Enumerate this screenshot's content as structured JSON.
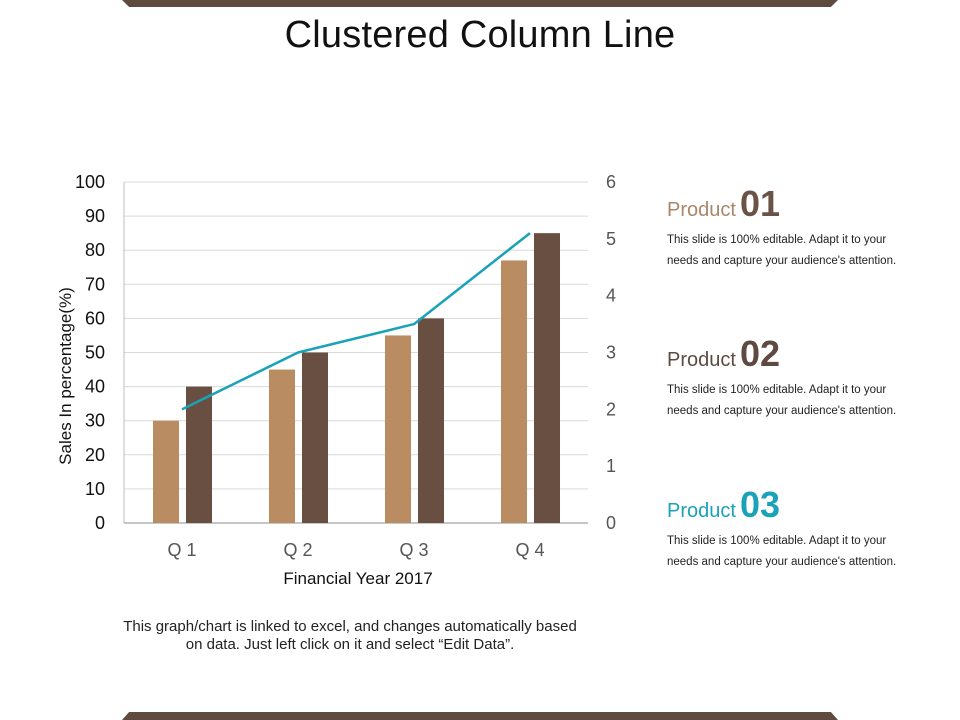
{
  "page": {
    "title": "Clustered Column Line",
    "caption": "This graph/chart is linked to excel, and changes automatically based on data. Just left click on it and select “Edit Data”.",
    "accent_color": "#5e4a40"
  },
  "chart_data": {
    "type": "bar",
    "combo": "clustered column + line",
    "categories": [
      "Q 1",
      "Q 2",
      "Q 3",
      "Q 4"
    ],
    "series": [
      {
        "values": [
          30,
          45,
          55,
          77
        ],
        "color": "#b98c62",
        "axis": "left"
      },
      {
        "values": [
          40,
          50,
          60,
          85
        ],
        "color": "#694f42",
        "axis": "left"
      }
    ],
    "line_series": {
      "values": [
        2.0,
        3.0,
        3.5,
        5.1
      ],
      "color": "#1aa2b8",
      "axis": "right",
      "type": "line"
    },
    "xlabel": "Financial Year 2017",
    "ylabel": "Sales In percentage(%)",
    "ylim": [
      0,
      100
    ],
    "yticks": [
      "0",
      "10",
      "20",
      "30",
      "40",
      "50",
      "60",
      "70",
      "80",
      "90",
      "100"
    ],
    "y2lim": [
      0,
      6
    ],
    "y2ticks": [
      "0",
      "1",
      "2",
      "3",
      "4",
      "5",
      "6"
    ],
    "grid": true,
    "legend": "none"
  },
  "products": [
    {
      "label": "Product",
      "number": "01",
      "label_color": "#a8876a",
      "number_color": "#6b5247",
      "desc_line1": "This slide is 100% editable. Adapt it to your",
      "desc_line2": "needs and capture your audience's attention."
    },
    {
      "label": "Product",
      "number": "02",
      "label_color": "#5e4a40",
      "number_color": "#5e4a40",
      "desc_line1": "This slide is 100% editable. Adapt it to your",
      "desc_line2": "needs and capture your audience's attention."
    },
    {
      "label": "Product",
      "number": "03",
      "label_color": "#1aa2b8",
      "number_color": "#1aa2b8",
      "desc_line1": "This slide is 100% editable. Adapt it to your",
      "desc_line2": "needs and capture your audience's attention."
    }
  ]
}
